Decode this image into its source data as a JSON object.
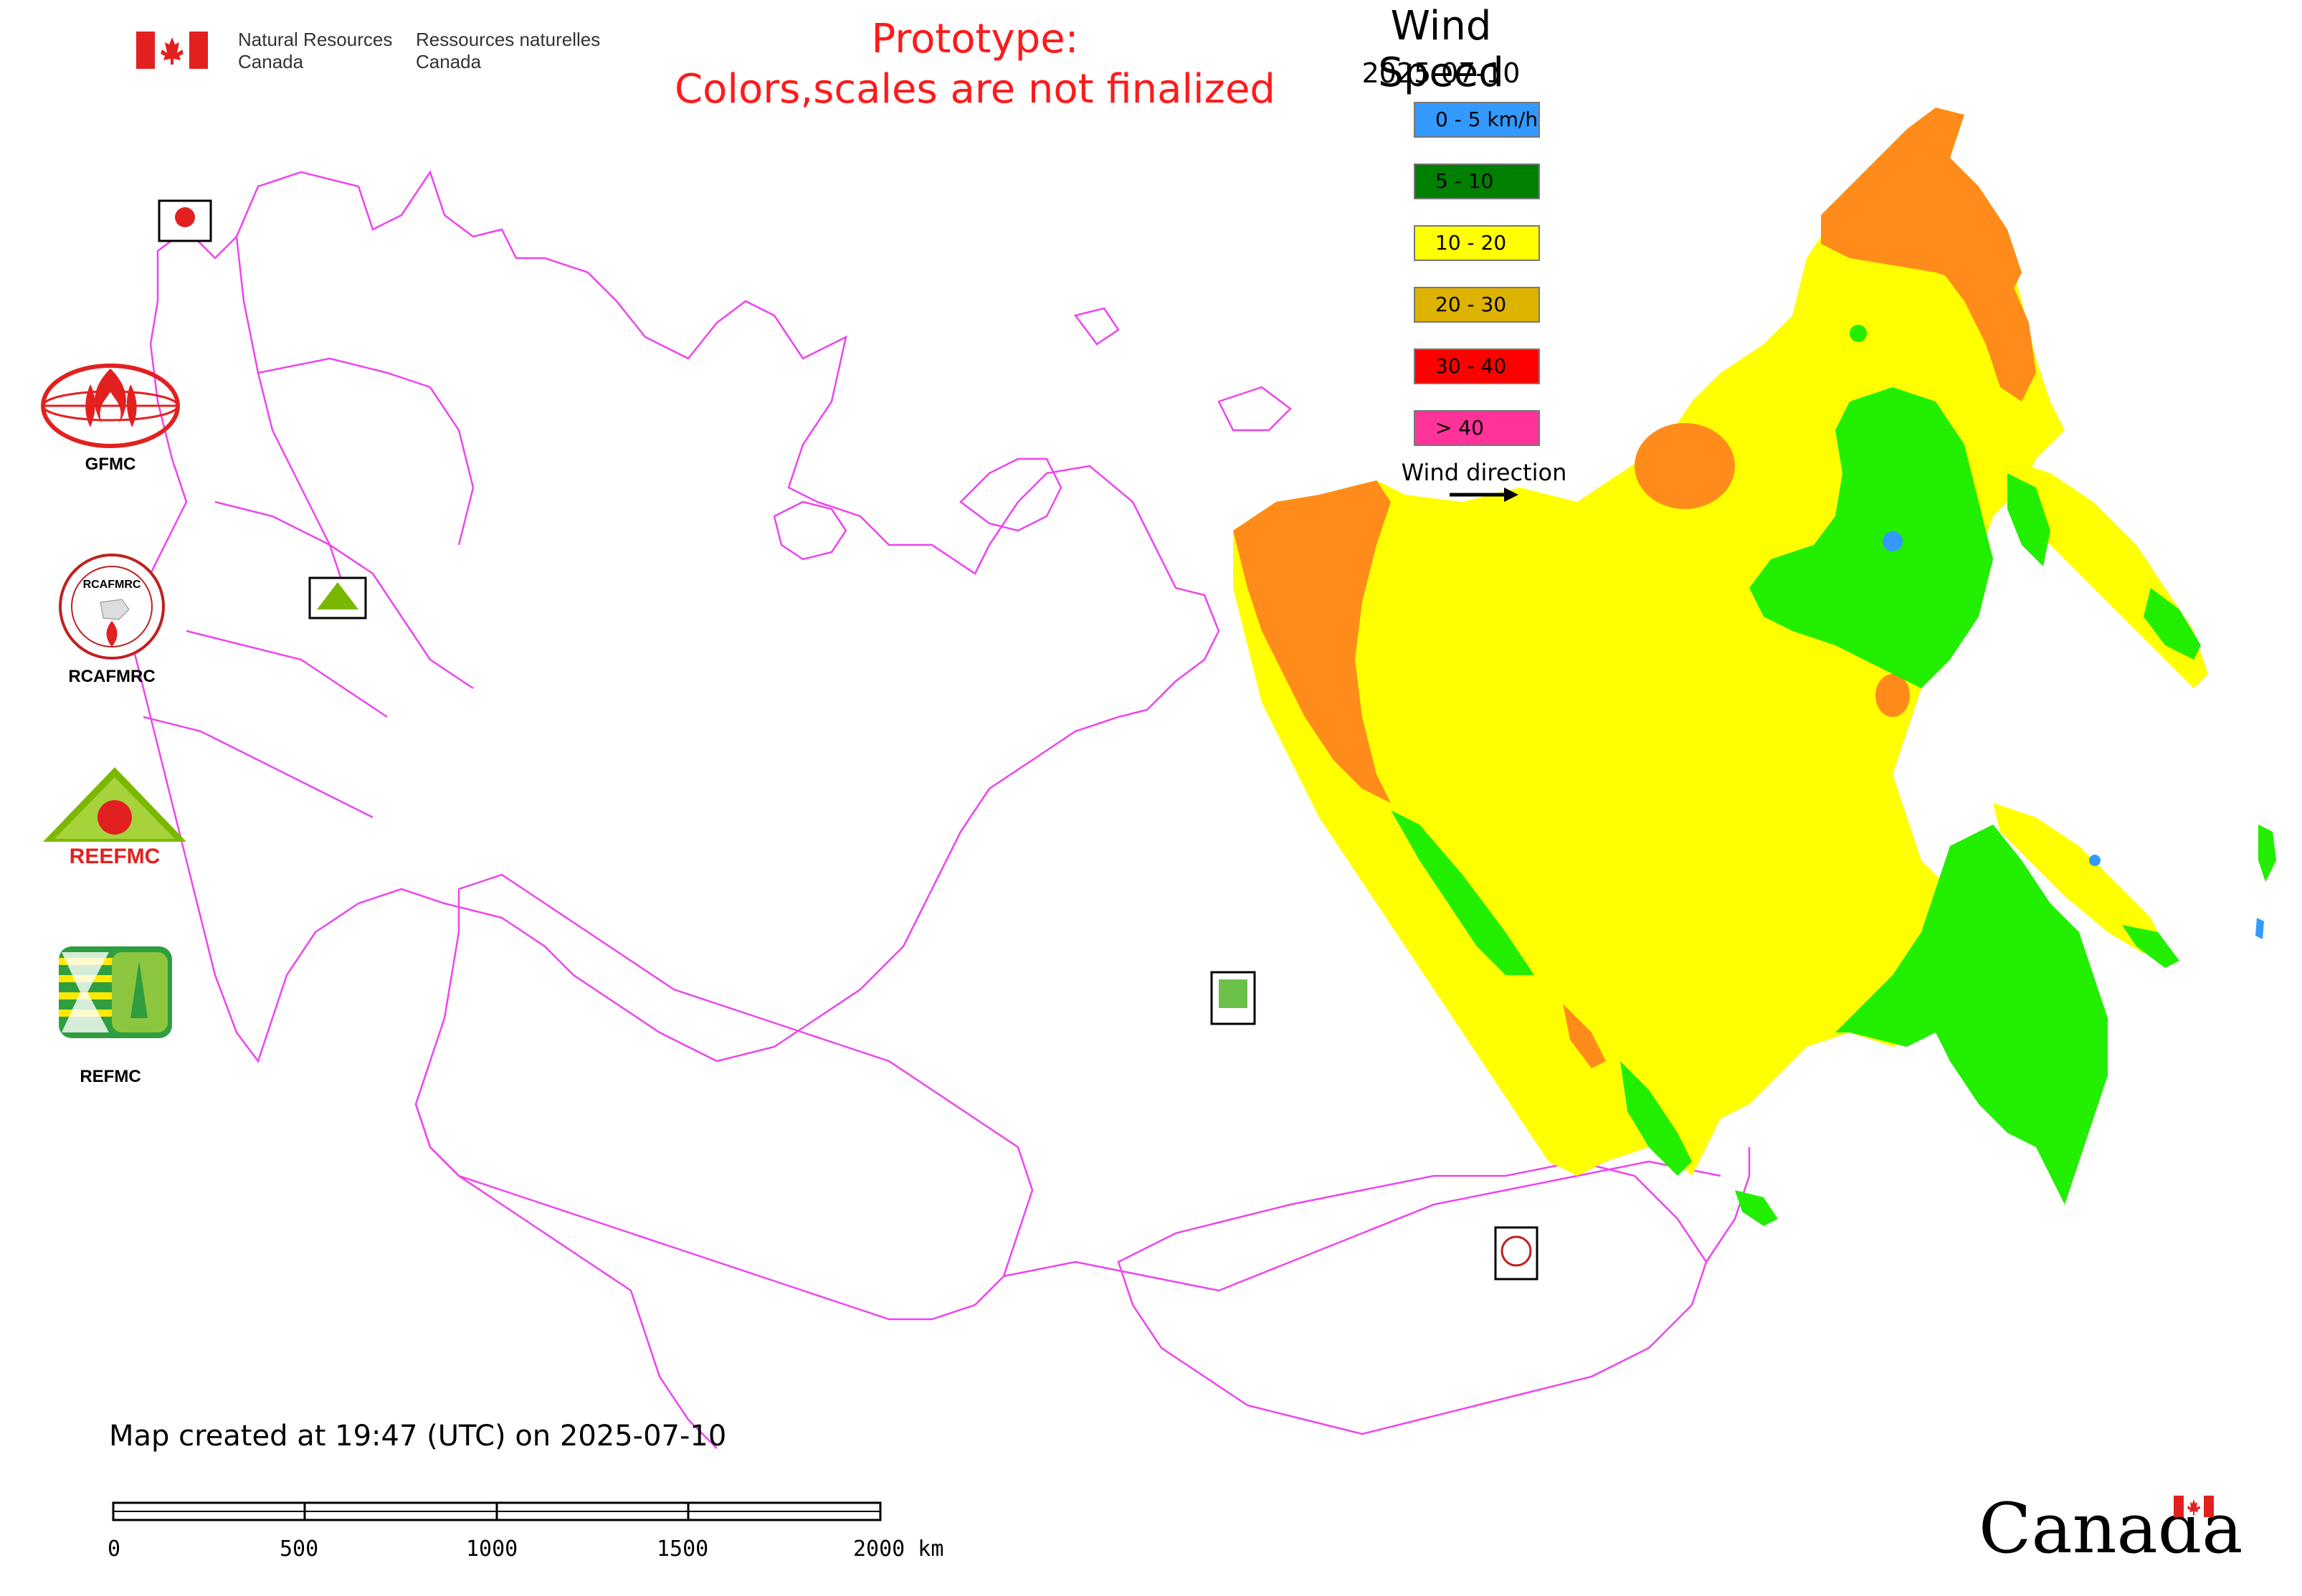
{
  "header": {
    "agency_en_line1": "Natural Resources",
    "agency_en_line2": "Canada",
    "agency_fr_line1": "Ressources naturelles",
    "agency_fr_line2": "Canada",
    "prototype_line1": "Prototype:",
    "prototype_line2": "Colors,scales are not finalized"
  },
  "legend": {
    "title": "Wind Speed",
    "date": "2025-07-10",
    "items": [
      {
        "label": "0 - 5 km/h",
        "color": "#3399ff"
      },
      {
        "label": "5 - 10",
        "color": "#008000"
      },
      {
        "label": "10 - 20",
        "color": "#ffff00"
      },
      {
        "label": "20 - 30",
        "color": "#ddb300"
      },
      {
        "label": "30 - 40",
        "color": "#ff0000"
      },
      {
        "label": "> 40",
        "color": "#ff3399"
      }
    ],
    "wind_direction_label": "Wind direction"
  },
  "logos": [
    {
      "name": "GFMC",
      "icon": "gfmc-logo-icon"
    },
    {
      "name": "RCAFMRC",
      "icon": "rcafmrc-logo-icon"
    },
    {
      "name": "REEFMC",
      "icon": "reefmc-logo-icon"
    },
    {
      "name": "REFMC",
      "icon": "refmc-logo-icon"
    }
  ],
  "seal_labels": {
    "rcafmrc_seal_text": "RCAFMRC",
    "reefmc_wordmark": "REEFMC"
  },
  "map": {
    "boundary_color": "#ee44ee",
    "zone_colors": {
      "orange": "#ff8c1a",
      "yellow": "#ffff00",
      "green": "#22ee00",
      "blue": "#3399ff"
    }
  },
  "footer": {
    "created_text": "Map created at 19:47 (UTC) on 2025-07-10",
    "scale_ticks": [
      "0",
      "500",
      "1000",
      "1500",
      "2000 km"
    ],
    "wordmark": "Canada"
  }
}
